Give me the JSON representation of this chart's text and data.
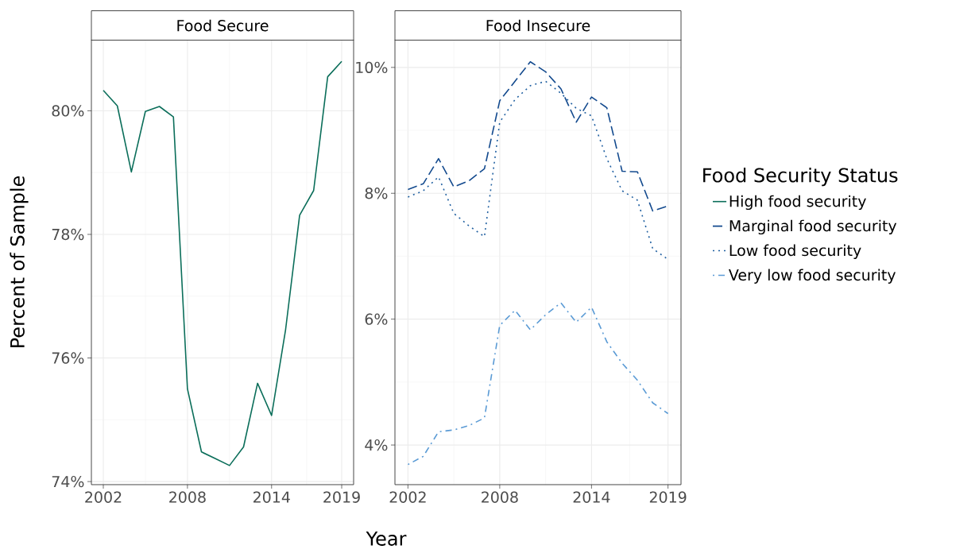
{
  "chart_data": [
    {
      "type": "line",
      "title": "Food Secure",
      "xlabel": "Year",
      "ylabel": "Percent of Sample",
      "grid": true,
      "xlim": [
        2001.15,
        2019.85
      ],
      "ylim": [
        73.95,
        81.15
      ],
      "xticks": [
        2002,
        2008,
        2014,
        2019
      ],
      "yticks": [
        {
          "value": 74,
          "label": "74%"
        },
        {
          "value": 76,
          "label": "76%"
        },
        {
          "value": 78,
          "label": "78%"
        },
        {
          "value": 80,
          "label": "80%"
        }
      ],
      "x": [
        2002,
        2003,
        2004,
        2005,
        2006,
        2007,
        2008,
        2009,
        2010,
        2011,
        2012,
        2013,
        2014,
        2015,
        2016,
        2017,
        2018,
        2019
      ],
      "series": [
        {
          "name": "High food security",
          "color": "#0b6e5a",
          "line_style": "solid",
          "values": [
            80.33,
            80.08,
            79.01,
            79.99,
            80.07,
            79.9,
            75.5,
            74.48,
            74.37,
            74.26,
            74.56,
            75.59,
            75.07,
            76.46,
            78.31,
            78.71,
            80.55,
            80.8
          ]
        }
      ]
    },
    {
      "type": "line",
      "title": "Food Insecure",
      "legend_title": "Food Security Status",
      "grid": true,
      "legend": "right",
      "xlim": [
        2001.15,
        2019.85
      ],
      "ylim": [
        3.37,
        10.44
      ],
      "xticks": [
        2002,
        2008,
        2014,
        2019
      ],
      "yticks": [
        {
          "value": 4,
          "label": "4%"
        },
        {
          "value": 6,
          "label": "6%"
        },
        {
          "value": 8,
          "label": "8%"
        },
        {
          "value": 10,
          "label": "10%"
        }
      ],
      "x": [
        2002,
        2003,
        2004,
        2005,
        2006,
        2007,
        2008,
        2009,
        2010,
        2011,
        2012,
        2013,
        2014,
        2015,
        2016,
        2017,
        2018,
        2019
      ],
      "series": [
        {
          "name": "Marginal food security",
          "color": "#134a8e",
          "line_style": "dashed",
          "values": [
            8.06,
            8.15,
            8.55,
            8.1,
            8.2,
            8.39,
            9.47,
            9.78,
            10.09,
            9.93,
            9.66,
            9.13,
            9.53,
            9.36,
            8.35,
            8.34,
            7.72,
            7.8
          ]
        },
        {
          "name": "Low food security",
          "color": "#1f5fa0",
          "line_style": "dotted",
          "values": [
            7.94,
            8.04,
            8.26,
            7.68,
            7.48,
            7.31,
            9.13,
            9.49,
            9.71,
            9.78,
            9.59,
            9.35,
            9.23,
            8.55,
            8.04,
            7.89,
            7.12,
            6.95
          ]
        },
        {
          "name": "Very low food security",
          "color": "#5b9bd5",
          "line_style": "dashdot",
          "values": [
            3.69,
            3.82,
            4.21,
            4.24,
            4.31,
            4.43,
            5.9,
            6.14,
            5.83,
            6.07,
            6.26,
            5.95,
            6.19,
            5.64,
            5.3,
            5.03,
            4.67,
            4.5
          ]
        }
      ]
    }
  ]
}
